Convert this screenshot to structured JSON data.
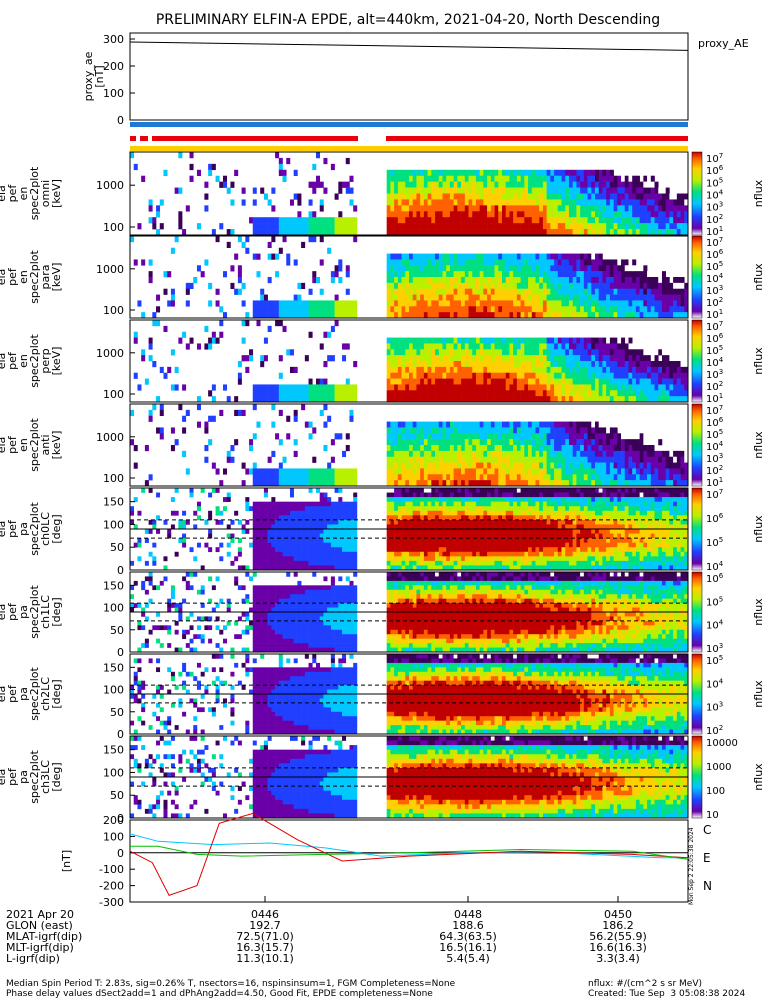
{
  "title": "PRELIMINARY ELFIN-A EPDE, alt=440km, 2021-04-20, North Descending",
  "colors": {
    "red_bar": "#e8000b",
    "blue_bar": "#1e78d8",
    "yellow_bar": "#ffcc00"
  },
  "chart_data": {
    "type": "heatmap",
    "panels": [
      {
        "id": "proxy_ae",
        "ylabel": "proxy_ae\n[nT]",
        "ticks": [
          "300",
          "200",
          "100",
          "0"
        ],
        "legend": "proxy_AE",
        "ylim": [
          0,
          300
        ],
        "series": [
          {
            "name": "proxy_AE",
            "values": [
              300,
              258
            ]
          }
        ]
      },
      {
        "id": "en_omni",
        "ylabel": "ela\npef\nen\nspec2plot\nomni\n[keV]",
        "ticks": [
          "1000",
          "100"
        ],
        "cbar": [
          "10^7",
          "10^6",
          "10^5",
          "10^4",
          "10^3",
          "10^2",
          "10^1"
        ],
        "cbar_label": "nflux"
      },
      {
        "id": "en_para",
        "ylabel": "ela\npef\nen\nspec2plot\npara\n[keV]",
        "ticks": [
          "1000",
          "100"
        ],
        "cbar": [
          "10^7",
          "10^6",
          "10^5",
          "10^4",
          "10^3",
          "10^2",
          "10^1"
        ],
        "cbar_label": "nflux"
      },
      {
        "id": "en_perp",
        "ylabel": "ela\npef\nen\nspec2plot\nperp\n[keV]",
        "ticks": [
          "1000",
          "100"
        ],
        "cbar": [
          "10^7",
          "10^6",
          "10^5",
          "10^4",
          "10^3",
          "10^2",
          "10^1"
        ],
        "cbar_label": "nflux"
      },
      {
        "id": "en_anti",
        "ylabel": "ela\npef\nen\nspec2plot\nanti\n[keV]",
        "ticks": [
          "1000",
          "100"
        ],
        "cbar": [
          "10^7",
          "10^6",
          "10^5",
          "10^4",
          "10^3",
          "10^2",
          "10^1"
        ],
        "cbar_label": "nflux"
      },
      {
        "id": "pa_ch0",
        "ylabel": "ela\npef\npa\nspec2plot\nch0LC\n[deg]",
        "ticks": [
          "150",
          "100",
          "50",
          "0"
        ],
        "cbar": [
          "10^7",
          "10^6",
          "10^5",
          "10^4"
        ],
        "cbar_label": "nflux"
      },
      {
        "id": "pa_ch1",
        "ylabel": "ela\npef\npa\nspec2plot\nch1LC\n[deg]",
        "ticks": [
          "150",
          "100",
          "50",
          "0"
        ],
        "cbar": [
          "10^6",
          "10^5",
          "10^4",
          "10^3"
        ],
        "cbar_label": "nflux"
      },
      {
        "id": "pa_ch2",
        "ylabel": "ela\npef\npa\nspec2plot\nch2LC\n[deg]",
        "ticks": [
          "150",
          "100",
          "50",
          "0"
        ],
        "cbar": [
          "10^5",
          "10^4",
          "10^3",
          "10^2"
        ],
        "cbar_label": "nflux"
      },
      {
        "id": "pa_ch3",
        "ylabel": "ela\npef\npa\nspec2plot\nch3LC\n[deg]",
        "ticks": [
          "150",
          "100",
          "50",
          "0"
        ],
        "cbar": [
          "10000",
          "1000",
          "100",
          "10"
        ],
        "cbar_label": "nflux"
      },
      {
        "id": "mag",
        "ylabel": "[nT]",
        "ticks": [
          "200",
          "100",
          "0",
          "-100",
          "-200",
          "-300"
        ],
        "ylim": [
          -300,
          200
        ],
        "components": [
          "C",
          "E",
          "N"
        ]
      }
    ],
    "xaxis": {
      "row_labels": [
        "2021 Apr 20",
        "GLON (east)",
        "MLAT-igrf(dip)",
        "MLT-igrf(dip)",
        "L-igrf(dip)"
      ],
      "columns": [
        {
          "time": "0446",
          "glon": "192.7",
          "mlat": "72.5(71.0)",
          "mlt": "16.3(15.7)",
          "l": "11.3(10.1)"
        },
        {
          "time": "0448",
          "glon": "188.6",
          "mlat": "64.3(63.5)",
          "mlt": "16.5(16.1)",
          "l": "5.4(5.4)"
        },
        {
          "time": "0450",
          "glon": "186.2",
          "mlat": "56.2(55.9)",
          "mlt": "16.6(16.3)",
          "l": "3.3(3.4)"
        }
      ]
    }
  },
  "side_label": "Mon Sep 2 22:05:38 2024",
  "footer": {
    "line1": "Median Spin Period T: 2.83s, sig=0.26% T, nsectors=16, nspinsinsum=1, FGM Completeness=None",
    "line2": "Phase delay values dSect2add=1 and dPhAng2add=4.50, Good Fit, EPDE completeness=None",
    "nflux": "nflux: #/(cm^2 s sr MeV)",
    "created": "Created: Tue Sep  3 05:08:38 2024"
  }
}
